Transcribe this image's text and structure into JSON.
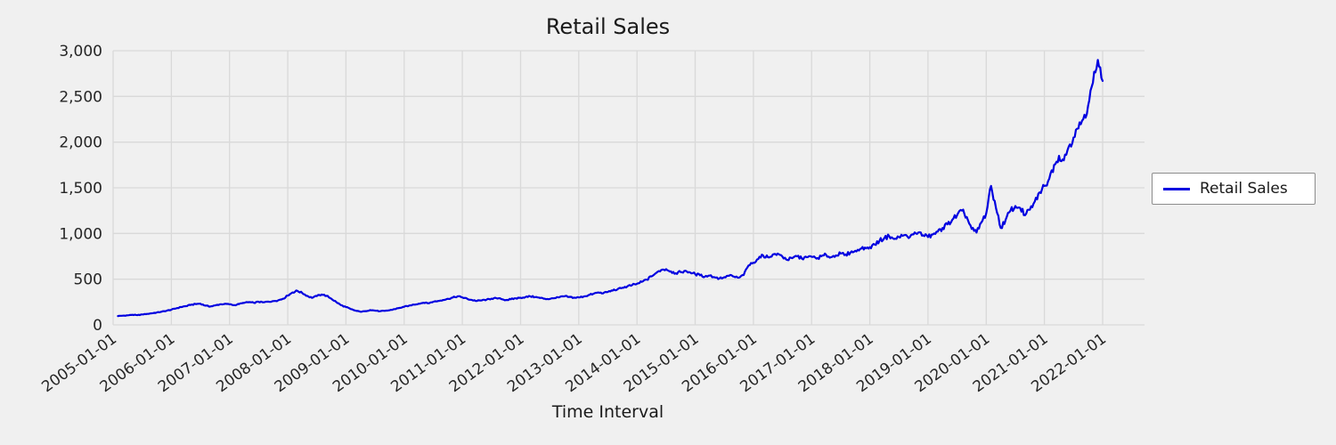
{
  "chart_data": {
    "type": "line",
    "title": "Retail Sales",
    "xlabel": "Time Interval",
    "ylabel": "",
    "legend": {
      "position": "center-right-outside",
      "entries": [
        "Retail Sales"
      ]
    },
    "colors": {
      "line": "#0000e0",
      "background": "#f0f0f0",
      "grid": "#d9d9d9",
      "tick_text": "#262626",
      "legend_bg": "#ffffff",
      "legend_border": "#8c8c8c"
    },
    "grid": true,
    "ylim": [
      0,
      3000
    ],
    "y_tick_values": [
      0,
      500,
      1000,
      1500,
      2000,
      2500,
      3000
    ],
    "y_tick_labels": [
      "0",
      "500",
      "1,000",
      "1,500",
      "2,000",
      "2,500",
      "3,000"
    ],
    "x_tick_labels": [
      "2005-01-01",
      "2006-01-01",
      "2007-01-01",
      "2008-01-01",
      "2009-01-01",
      "2010-01-01",
      "2011-01-01",
      "2012-01-01",
      "2013-01-01",
      "2014-01-01",
      "2015-01-01",
      "2016-01-01",
      "2017-01-01",
      "2018-01-01",
      "2019-01-01",
      "2020-01-01",
      "2021-01-01",
      "2022-01-01"
    ],
    "x_start": "2005-02-01",
    "x_frequency": "monthly",
    "series": [
      {
        "name": "Retail Sales",
        "values": [
          96,
          100,
          104,
          110,
          106,
          114,
          120,
          127,
          135,
          144,
          154,
          166,
          180,
          195,
          205,
          218,
          228,
          232,
          210,
          200,
          212,
          224,
          230,
          224,
          216,
          228,
          240,
          248,
          242,
          252,
          246,
          254,
          260,
          268,
          285,
          320,
          355,
          372,
          348,
          318,
          295,
          315,
          332,
          318,
          285,
          250,
          215,
          195,
          172,
          155,
          143,
          150,
          162,
          156,
          149,
          153,
          160,
          172,
          185,
          198,
          210,
          222,
          232,
          242,
          236,
          252,
          262,
          272,
          285,
          298,
          312,
          300,
          285,
          272,
          262,
          268,
          276,
          286,
          292,
          282,
          272,
          280,
          290,
          296,
          304,
          312,
          304,
          294,
          286,
          282,
          292,
          302,
          312,
          306,
          298,
          300,
          310,
          325,
          340,
          355,
          345,
          360,
          375,
          390,
          405,
          420,
          435,
          450,
          470,
          495,
          530,
          570,
          600,
          610,
          585,
          565,
          578,
          592,
          572,
          556,
          542,
          528,
          540,
          520,
          508,
          522,
          538,
          528,
          516,
          545,
          650,
          680,
          720,
          760,
          740,
          770,
          780,
          745,
          710,
          730,
          750,
          725,
          740,
          745,
          725,
          750,
          765,
          740,
          760,
          780,
          770,
          790,
          810,
          830,
          845,
          850,
          880,
          920,
          950,
          970,
          940,
          960,
          980,
          950,
          990,
          1010,
          980,
          960,
          990,
          1020,
          1060,
          1100,
          1150,
          1200,
          1250,
          1180,
          1050,
          1010,
          1120,
          1220,
          1520,
          1280,
          1060,
          1150,
          1250,
          1300,
          1280,
          1200,
          1260,
          1350,
          1450,
          1520,
          1600,
          1750,
          1850,
          1800,
          1950,
          2050,
          2150,
          2250,
          2400,
          2650,
          2900,
          2670
        ]
      }
    ]
  }
}
